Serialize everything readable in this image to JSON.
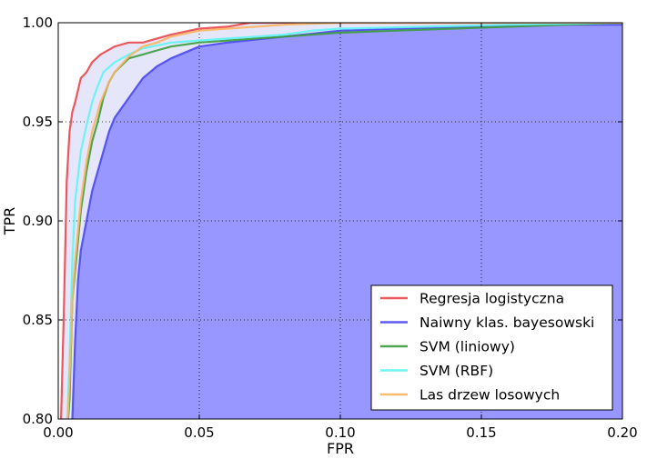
{
  "chart_data": {
    "type": "line",
    "xlabel": "FPR",
    "ylabel": "TPR",
    "xlim": [
      0.0,
      0.2
    ],
    "ylim": [
      0.8,
      1.0
    ],
    "x_ticks": [
      "0.00",
      "0.05",
      "0.10",
      "0.15",
      "0.20"
    ],
    "y_ticks": [
      "0.80",
      "0.85",
      "0.90",
      "0.95",
      "1.00"
    ],
    "grid": true,
    "legend_position": "lower-right",
    "series": [
      {
        "name": "Regresja logistyczna",
        "color": "#e8474d",
        "fill": "#e6e6fb",
        "points": [
          [
            0.0,
            0.79
          ],
          [
            0.001,
            0.8
          ],
          [
            0.002,
            0.855
          ],
          [
            0.003,
            0.92
          ],
          [
            0.004,
            0.945
          ],
          [
            0.005,
            0.955
          ],
          [
            0.006,
            0.96
          ],
          [
            0.007,
            0.966
          ],
          [
            0.008,
            0.972
          ],
          [
            0.01,
            0.975
          ],
          [
            0.012,
            0.98
          ],
          [
            0.015,
            0.984
          ],
          [
            0.02,
            0.988
          ],
          [
            0.025,
            0.99
          ],
          [
            0.03,
            0.99
          ],
          [
            0.035,
            0.992
          ],
          [
            0.04,
            0.994
          ],
          [
            0.05,
            0.997
          ],
          [
            0.06,
            0.998
          ],
          [
            0.068,
            1.0
          ],
          [
            0.2,
            1.0
          ]
        ]
      },
      {
        "name": "Naiwny klas. bayesowski",
        "color": "#4b48ef",
        "fill": "#9797ff",
        "points": [
          [
            0.004,
            0.79
          ],
          [
            0.005,
            0.8
          ],
          [
            0.006,
            0.84
          ],
          [
            0.007,
            0.87
          ],
          [
            0.008,
            0.885
          ],
          [
            0.01,
            0.9
          ],
          [
            0.012,
            0.915
          ],
          [
            0.015,
            0.93
          ],
          [
            0.018,
            0.945
          ],
          [
            0.02,
            0.952
          ],
          [
            0.025,
            0.962
          ],
          [
            0.03,
            0.972
          ],
          [
            0.035,
            0.978
          ],
          [
            0.04,
            0.982
          ],
          [
            0.045,
            0.985
          ],
          [
            0.05,
            0.988
          ],
          [
            0.06,
            0.99
          ],
          [
            0.08,
            0.993
          ],
          [
            0.1,
            0.996
          ],
          [
            0.12,
            0.997
          ],
          [
            0.15,
            0.998
          ],
          [
            0.18,
            0.999
          ],
          [
            0.2,
            0.999
          ]
        ]
      },
      {
        "name": "SVM (liniowy)",
        "color": "#3c9c3c",
        "fill": null,
        "points": [
          [
            0.003,
            0.79
          ],
          [
            0.004,
            0.81
          ],
          [
            0.005,
            0.86
          ],
          [
            0.006,
            0.875
          ],
          [
            0.008,
            0.905
          ],
          [
            0.01,
            0.925
          ],
          [
            0.012,
            0.94
          ],
          [
            0.014,
            0.95
          ],
          [
            0.016,
            0.962
          ],
          [
            0.018,
            0.97
          ],
          [
            0.02,
            0.975
          ],
          [
            0.025,
            0.982
          ],
          [
            0.03,
            0.984
          ],
          [
            0.035,
            0.986
          ],
          [
            0.04,
            0.988
          ],
          [
            0.05,
            0.99
          ],
          [
            0.06,
            0.991
          ],
          [
            0.07,
            0.992
          ],
          [
            0.08,
            0.993
          ],
          [
            0.1,
            0.995
          ],
          [
            0.12,
            0.996
          ],
          [
            0.14,
            0.997
          ],
          [
            0.16,
            0.998
          ],
          [
            0.18,
            0.999
          ],
          [
            0.2,
            1.0
          ]
        ]
      },
      {
        "name": "SVM (RBF)",
        "color": "#5ef4f4",
        "fill": null,
        "points": [
          [
            0.003,
            0.79
          ],
          [
            0.004,
            0.83
          ],
          [
            0.005,
            0.88
          ],
          [
            0.006,
            0.91
          ],
          [
            0.008,
            0.935
          ],
          [
            0.01,
            0.948
          ],
          [
            0.012,
            0.96
          ],
          [
            0.014,
            0.968
          ],
          [
            0.016,
            0.975
          ],
          [
            0.02,
            0.98
          ],
          [
            0.025,
            0.984
          ],
          [
            0.03,
            0.987
          ],
          [
            0.04,
            0.99
          ],
          [
            0.05,
            0.991
          ],
          [
            0.06,
            0.992
          ],
          [
            0.07,
            0.993
          ],
          [
            0.08,
            0.994
          ],
          [
            0.09,
            0.996
          ],
          [
            0.1,
            0.997
          ],
          [
            0.13,
            0.998
          ],
          [
            0.16,
            0.999
          ],
          [
            0.2,
            1.0
          ]
        ]
      },
      {
        "name": "Las drzew losowych",
        "color": "#fdb460",
        "fill": null,
        "points": [
          [
            0.003,
            0.79
          ],
          [
            0.004,
            0.82
          ],
          [
            0.005,
            0.86
          ],
          [
            0.006,
            0.88
          ],
          [
            0.008,
            0.91
          ],
          [
            0.01,
            0.93
          ],
          [
            0.012,
            0.945
          ],
          [
            0.015,
            0.96
          ],
          [
            0.018,
            0.97
          ],
          [
            0.02,
            0.975
          ],
          [
            0.025,
            0.983
          ],
          [
            0.03,
            0.988
          ],
          [
            0.035,
            0.99
          ],
          [
            0.04,
            0.993
          ],
          [
            0.05,
            0.996
          ],
          [
            0.06,
            0.997
          ],
          [
            0.08,
            0.999
          ],
          [
            0.1,
            1.0
          ],
          [
            0.2,
            1.0
          ]
        ]
      }
    ]
  }
}
